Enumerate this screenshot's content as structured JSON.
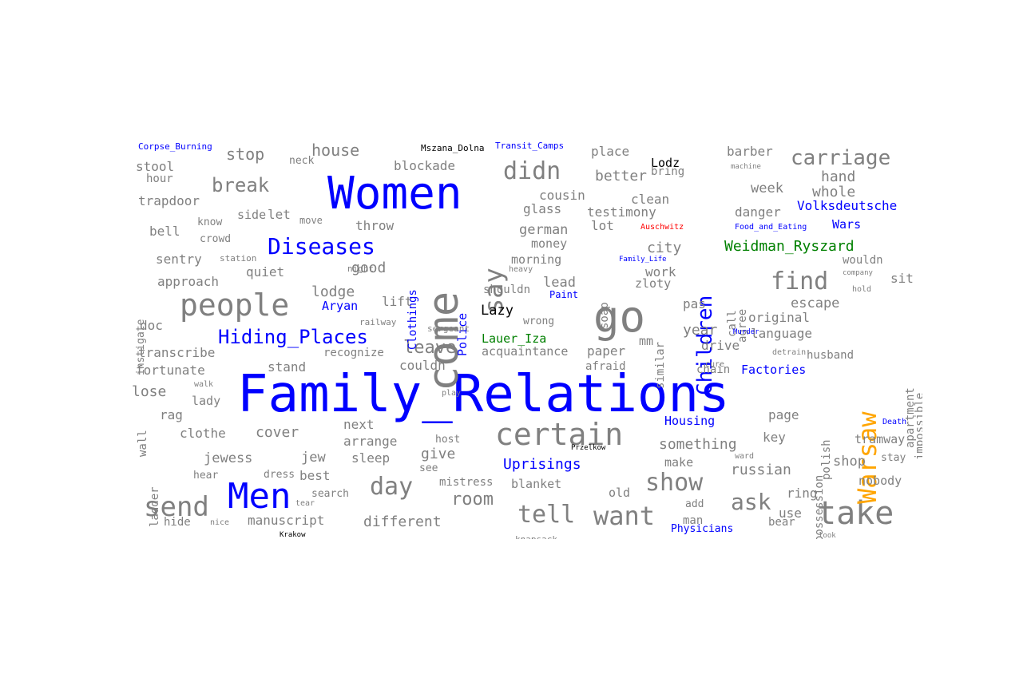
{
  "colors": {
    "gray": "#808080",
    "blue": "#0000ff",
    "orange": "#ffa500",
    "green": "#008000",
    "black": "#000000",
    "red": "#ff0000"
  },
  "words": [
    {
      "text": "Family_Relations",
      "color": "blue"
    },
    {
      "text": "Women",
      "color": "blue"
    },
    {
      "text": "come",
      "color": "gray"
    },
    {
      "text": "go",
      "color": "gray"
    },
    {
      "text": "Men",
      "color": "blue"
    },
    {
      "text": "take",
      "color": "gray"
    },
    {
      "text": "certain",
      "color": "gray"
    },
    {
      "text": "Warsaw",
      "color": "orange"
    },
    {
      "text": "Children",
      "color": "blue"
    },
    {
      "text": "people",
      "color": "gray"
    },
    {
      "text": "want",
      "color": "gray"
    },
    {
      "text": "send",
      "color": "gray"
    },
    {
      "text": "tell",
      "color": "gray"
    },
    {
      "text": "say",
      "color": "gray"
    },
    {
      "text": "find",
      "color": "gray"
    },
    {
      "text": "ask",
      "color": "gray"
    },
    {
      "text": "show",
      "color": "gray"
    },
    {
      "text": "didn",
      "color": "gray"
    },
    {
      "text": "day",
      "color": "gray"
    },
    {
      "text": "Diseases",
      "color": "blue"
    },
    {
      "text": "Hiding_Places",
      "color": "blue"
    },
    {
      "text": "carriage",
      "color": "gray"
    },
    {
      "text": "break",
      "color": "gray"
    },
    {
      "text": "room",
      "color": "gray"
    },
    {
      "text": "leave",
      "color": "gray"
    },
    {
      "text": "Weidman_Ryszard",
      "color": "green"
    },
    {
      "text": "Uprisings",
      "color": "blue"
    },
    {
      "text": "different",
      "color": "gray"
    },
    {
      "text": "house",
      "color": "gray"
    },
    {
      "text": "stop",
      "color": "gray"
    },
    {
      "text": "cover",
      "color": "gray"
    },
    {
      "text": "jewess",
      "color": "gray"
    },
    {
      "text": "give",
      "color": "gray"
    },
    {
      "text": "something",
      "color": "gray"
    },
    {
      "text": "russian",
      "color": "gray"
    },
    {
      "text": "whole",
      "color": "gray"
    },
    {
      "text": "hand",
      "color": "gray"
    },
    {
      "text": "better",
      "color": "gray"
    },
    {
      "text": "good",
      "color": "gray"
    },
    {
      "text": "lodge",
      "color": "gray"
    },
    {
      "text": "city",
      "color": "gray"
    },
    {
      "text": "year",
      "color": "gray"
    },
    {
      "text": "escape",
      "color": "gray"
    },
    {
      "text": "week",
      "color": "gray"
    },
    {
      "text": "jew",
      "color": "gray"
    },
    {
      "text": "shop",
      "color": "gray"
    },
    {
      "text": "german",
      "color": "gray"
    },
    {
      "text": "lead",
      "color": "gray"
    },
    {
      "text": "Lazy",
      "color": "black"
    },
    {
      "text": "Volksdeutsche",
      "color": "blue"
    },
    {
      "text": "Factories",
      "color": "blue"
    },
    {
      "text": "Housing",
      "color": "blue"
    },
    {
      "text": "Aryan",
      "color": "blue"
    },
    {
      "text": "Lauer_Iza",
      "color": "green"
    },
    {
      "text": "Wars",
      "color": "blue"
    },
    {
      "text": "Lodz",
      "color": "black"
    },
    {
      "text": "Police",
      "color": "blue"
    },
    {
      "text": "Clothings",
      "color": "blue"
    },
    {
      "text": "Physicians",
      "color": "blue"
    },
    {
      "text": "stool",
      "color": "gray"
    },
    {
      "text": "hour",
      "color": "gray"
    },
    {
      "text": "trapdoor",
      "color": "gray"
    },
    {
      "text": "side",
      "color": "gray"
    },
    {
      "text": "let",
      "color": "gray"
    },
    {
      "text": "bell",
      "color": "gray"
    },
    {
      "text": "know",
      "color": "gray"
    },
    {
      "text": "crowd",
      "color": "gray"
    },
    {
      "text": "sentry",
      "color": "gray"
    },
    {
      "text": "quiet",
      "color": "gray"
    },
    {
      "text": "approach",
      "color": "gray"
    },
    {
      "text": "doc",
      "color": "gray"
    },
    {
      "text": "transcribe",
      "color": "gray"
    },
    {
      "text": "fortunate",
      "color": "gray"
    },
    {
      "text": "stand",
      "color": "gray"
    },
    {
      "text": "lose",
      "color": "gray"
    },
    {
      "text": "lady",
      "color": "gray"
    },
    {
      "text": "rag",
      "color": "gray"
    },
    {
      "text": "clothe",
      "color": "gray"
    },
    {
      "text": "hear",
      "color": "gray"
    },
    {
      "text": "dress",
      "color": "gray"
    },
    {
      "text": "best",
      "color": "gray"
    },
    {
      "text": "search",
      "color": "gray"
    },
    {
      "text": "hide",
      "color": "gray"
    },
    {
      "text": "manuscript",
      "color": "gray"
    },
    {
      "text": "blockade",
      "color": "gray"
    },
    {
      "text": "neck",
      "color": "gray"
    },
    {
      "text": "throw",
      "color": "gray"
    },
    {
      "text": "lift",
      "color": "gray"
    },
    {
      "text": "recognize",
      "color": "gray"
    },
    {
      "text": "couldn",
      "color": "gray"
    },
    {
      "text": "next",
      "color": "gray"
    },
    {
      "text": "arrange",
      "color": "gray"
    },
    {
      "text": "sleep",
      "color": "gray"
    },
    {
      "text": "see",
      "color": "gray"
    },
    {
      "text": "mistress",
      "color": "gray"
    },
    {
      "text": "blanket",
      "color": "gray"
    },
    {
      "text": "glass",
      "color": "gray"
    },
    {
      "text": "cousin",
      "color": "gray"
    },
    {
      "text": "money",
      "color": "gray"
    },
    {
      "text": "morning",
      "color": "gray"
    },
    {
      "text": "shouldn",
      "color": "gray"
    },
    {
      "text": "acquaintance",
      "color": "gray"
    },
    {
      "text": "paper",
      "color": "gray"
    },
    {
      "text": "afraid",
      "color": "gray"
    },
    {
      "text": "testimony",
      "color": "gray"
    },
    {
      "text": "lot",
      "color": "gray"
    },
    {
      "text": "clean",
      "color": "gray"
    },
    {
      "text": "place",
      "color": "gray"
    },
    {
      "text": "bring",
      "color": "gray"
    },
    {
      "text": "work",
      "color": "gray"
    },
    {
      "text": "zloty",
      "color": "gray"
    },
    {
      "text": "pas",
      "color": "gray"
    },
    {
      "text": "mm",
      "color": "gray"
    },
    {
      "text": "make",
      "color": "gray"
    },
    {
      "text": "old",
      "color": "gray"
    },
    {
      "text": "add",
      "color": "gray"
    },
    {
      "text": "man",
      "color": "gray"
    },
    {
      "text": "barber",
      "color": "gray"
    },
    {
      "text": "danger",
      "color": "gray"
    },
    {
      "text": "original",
      "color": "gray"
    },
    {
      "text": "language",
      "color": "gray"
    },
    {
      "text": "drive",
      "color": "gray"
    },
    {
      "text": "husband",
      "color": "gray"
    },
    {
      "text": "chain",
      "color": "gray"
    },
    {
      "text": "page",
      "color": "gray"
    },
    {
      "text": "key",
      "color": "gray"
    },
    {
      "text": "ring",
      "color": "gray"
    },
    {
      "text": "use",
      "color": "gray"
    },
    {
      "text": "bear",
      "color": "gray"
    },
    {
      "text": "sit",
      "color": "gray"
    },
    {
      "text": "wouldn",
      "color": "gray"
    },
    {
      "text": "tramway",
      "color": "gray"
    },
    {
      "text": "nobody",
      "color": "gray"
    },
    {
      "text": "stay",
      "color": "gray"
    },
    {
      "text": "tall",
      "color": "gray"
    },
    {
      "text": "agree",
      "color": "gray"
    },
    {
      "text": "call",
      "color": "gray"
    },
    {
      "text": "soap",
      "color": "gray"
    },
    {
      "text": "similar",
      "color": "gray"
    },
    {
      "text": "polish",
      "color": "gray"
    },
    {
      "text": "possession",
      "color": "gray"
    },
    {
      "text": "apartment",
      "color": "gray"
    },
    {
      "text": "impossible",
      "color": "gray"
    },
    {
      "text": "instigate",
      "color": "gray"
    },
    {
      "text": "wall",
      "color": "gray"
    },
    {
      "text": "ladder",
      "color": "gray"
    },
    {
      "text": "move",
      "color": "gray"
    },
    {
      "text": "station",
      "color": "gray"
    },
    {
      "text": "night",
      "color": "gray"
    },
    {
      "text": "railway",
      "color": "gray"
    },
    {
      "text": "sergeant",
      "color": "gray"
    },
    {
      "text": "heavy",
      "color": "gray"
    },
    {
      "text": "wrong",
      "color": "gray"
    },
    {
      "text": "walk",
      "color": "gray"
    },
    {
      "text": "play",
      "color": "gray"
    },
    {
      "text": "host",
      "color": "gray"
    },
    {
      "text": "tear",
      "color": "gray"
    },
    {
      "text": "nice",
      "color": "gray"
    },
    {
      "text": "machine",
      "color": "gray"
    },
    {
      "text": "company",
      "color": "gray"
    },
    {
      "text": "hold",
      "color": "gray"
    },
    {
      "text": "detrain",
      "color": "gray"
    },
    {
      "text": "cure",
      "color": "gray"
    },
    {
      "text": "knapsack",
      "color": "gray"
    },
    {
      "text": "look",
      "color": "gray"
    },
    {
      "text": "ward",
      "color": "gray"
    },
    {
      "text": "Corpse_Burning",
      "color": "blue"
    },
    {
      "text": "Mszana_Dolna",
      "color": "black"
    },
    {
      "text": "Transit_Camps",
      "color": "blue"
    },
    {
      "text": "Food_and_Eating",
      "color": "blue"
    },
    {
      "text": "Family_Life",
      "color": "blue"
    },
    {
      "text": "Paint",
      "color": "blue"
    },
    {
      "text": "Auschwitz",
      "color": "red"
    },
    {
      "text": "Murder",
      "color": "blue"
    },
    {
      "text": "Death",
      "color": "blue"
    },
    {
      "text": "Przelkow",
      "color": "black"
    },
    {
      "text": "Krakow",
      "color": "black"
    }
  ]
}
